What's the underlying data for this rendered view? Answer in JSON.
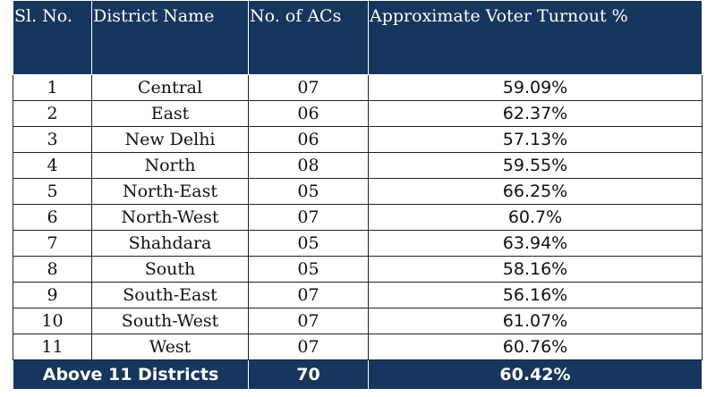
{
  "table": {
    "headers": [
      "Sl. No.",
      "District Name",
      "No. of ACs",
      "Approximate Voter Turnout %"
    ],
    "rows": [
      {
        "sl": "1",
        "district": "Central",
        "acs": "07",
        "turnout": "59.09%"
      },
      {
        "sl": "2",
        "district": "East",
        "acs": "06",
        "turnout": "62.37%"
      },
      {
        "sl": "3",
        "district": "New Delhi",
        "acs": "06",
        "turnout": "57.13%"
      },
      {
        "sl": "4",
        "district": "North",
        "acs": "08",
        "turnout": "59.55%"
      },
      {
        "sl": "5",
        "district": "North-East",
        "acs": "05",
        "turnout": "66.25%"
      },
      {
        "sl": "6",
        "district": "North-West",
        "acs": "07",
        "turnout": "60.7%"
      },
      {
        "sl": "7",
        "district": "Shahdara",
        "acs": "05",
        "turnout": "63.94%"
      },
      {
        "sl": "8",
        "district": "South",
        "acs": "05",
        "turnout": "58.16%"
      },
      {
        "sl": "9",
        "district": "South-East",
        "acs": "07",
        "turnout": "56.16%"
      },
      {
        "sl": "10",
        "district": "South-West",
        "acs": "07",
        "turnout": "61.07%"
      },
      {
        "sl": "11",
        "district": "West",
        "acs": "07",
        "turnout": "60.76%"
      }
    ],
    "total": {
      "label": "Above 11 Districts",
      "acs": "70",
      "turnout": "60.42%"
    }
  },
  "colors": {
    "header_bg": "#17365d",
    "header_text": "#ffffff",
    "grid": "#222222"
  }
}
